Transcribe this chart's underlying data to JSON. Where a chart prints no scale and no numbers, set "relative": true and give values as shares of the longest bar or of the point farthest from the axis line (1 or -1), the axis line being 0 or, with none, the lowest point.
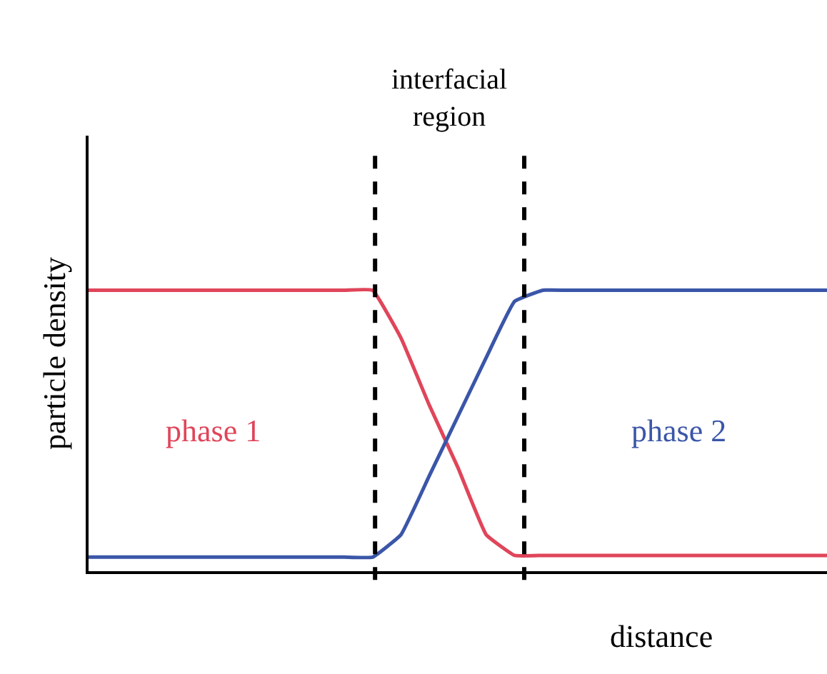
{
  "chart_data": {
    "type": "line",
    "relative": true,
    "xlabel": "distance",
    "ylabel": "particle density",
    "categories": [
      null,
      null,
      null,
      null,
      null,
      null,
      null,
      null,
      null,
      null,
      null,
      null,
      null,
      null,
      null,
      null,
      null,
      null,
      null,
      null,
      null,
      null,
      null,
      null,
      null,
      null,
      null
    ],
    "series": [
      {
        "name": "phase 1",
        "color": "#e0455a",
        "values": [
          1,
          1,
          1,
          1,
          1,
          1,
          1,
          1,
          1,
          1,
          1,
          0.83,
          0.59,
          0.37,
          0.13,
          0.056,
          0.056,
          0.056,
          0.056,
          0.056,
          0.056,
          0.056,
          0.056,
          0.056,
          0.056,
          0.056,
          0.056
        ]
      },
      {
        "name": "phase 2",
        "color": "#3a56a8",
        "values": [
          0.05,
          0.05,
          0.05,
          0.05,
          0.05,
          0.05,
          0.05,
          0.05,
          0.05,
          0.05,
          0.05,
          0.13,
          0.34,
          0.55,
          0.76,
          0.96,
          1,
          1,
          1,
          1,
          1,
          1,
          1,
          1,
          1,
          1,
          1
        ]
      }
    ],
    "annotations": [
      "interfacial region"
    ],
    "tick_labels": false,
    "legend": false,
    "marker": "none",
    "line_style": "solid"
  }
}
